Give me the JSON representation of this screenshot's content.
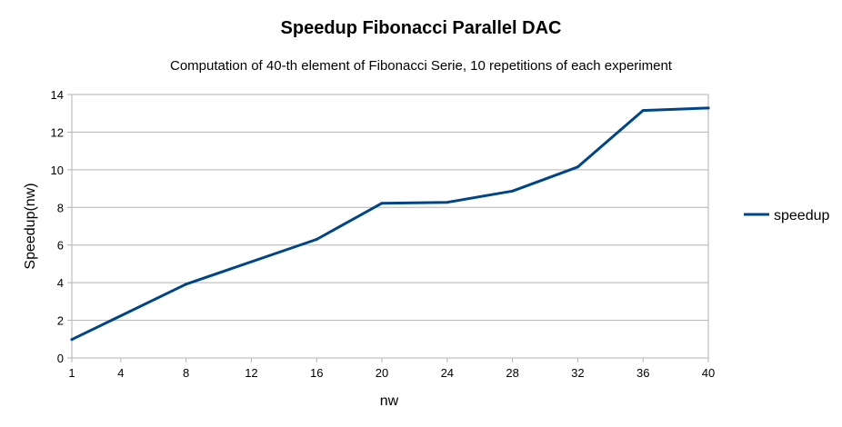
{
  "chart_data": {
    "type": "line",
    "title": "Speedup Fibonacci Parallel DAC",
    "subtitle": "Computation of 40-th element of Fibonacci Serie, 10 repetitions of each experiment",
    "xlabel": "nw",
    "ylabel": "Speedup(nw)",
    "categories": [
      "1",
      "4",
      "8",
      "12",
      "16",
      "20",
      "24",
      "28",
      "32",
      "36",
      "40"
    ],
    "x": [
      1,
      8,
      16,
      20,
      24,
      28,
      32,
      36,
      40
    ],
    "series": [
      {
        "name": "speedup",
        "color": "#004586",
        "values": [
          0.98,
          3.92,
          6.3,
          8.22,
          8.27,
          8.87,
          10.15,
          13.15,
          13.28
        ]
      }
    ],
    "ylim": [
      0,
      14
    ],
    "yticks": [
      "0",
      "2",
      "4",
      "6",
      "8",
      "10",
      "12",
      "14"
    ],
    "grid": true,
    "legend": "right"
  }
}
